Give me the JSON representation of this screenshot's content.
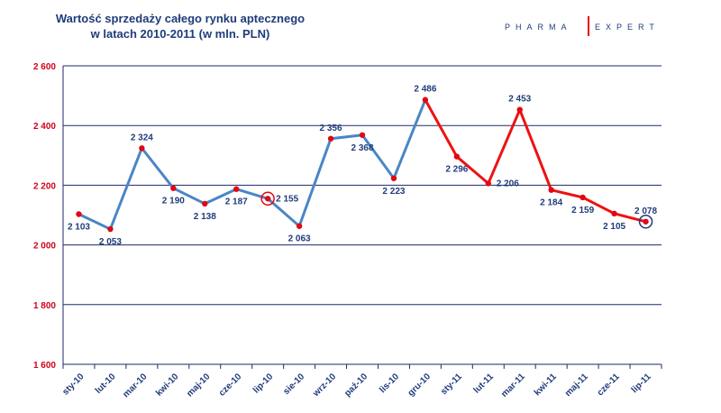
{
  "header": {
    "title_line1": "Wartość sprzedaży całego rynku aptecznego",
    "title_line2": "w latach 2010-2011 (w mln. PLN)",
    "brand_left": "PHARMA",
    "brand_right": "EXPERT"
  },
  "chart_data": {
    "type": "line",
    "title": "Wartość sprzedaży całego rynku aptecznego w latach 2010-2011 (w mln. PLN)",
    "xlabel": "",
    "ylabel": "",
    "ylim": [
      1600,
      2600
    ],
    "yticks": [
      1600,
      1800,
      2000,
      2200,
      2400,
      2600
    ],
    "ytick_labels": [
      "1 600",
      "1 800",
      "2 000",
      "2 200",
      "2 400",
      "2 600"
    ],
    "grid": true,
    "categories": [
      "sty-10",
      "lut-10",
      "mar-10",
      "kwi-10",
      "maj-10",
      "cze-10",
      "lip-10",
      "sie-10",
      "wrz-10",
      "paź-10",
      "lis-10",
      "gru-10",
      "sty-11",
      "lut-11",
      "mar-11",
      "kwi-11",
      "maj-11",
      "cze-11",
      "lip-11"
    ],
    "values": [
      2103,
      2053,
      2324,
      2190,
      2138,
      2187,
      2155,
      2063,
      2356,
      2368,
      2223,
      2486,
      2296,
      2206,
      2453,
      2184,
      2159,
      2105,
      2078
    ],
    "value_labels": [
      "2 103",
      "2 053",
      "2 324",
      "2 190",
      "2 138",
      "2 187",
      "2 155",
      "2 063",
      "2 356",
      "2 368",
      "2 223",
      "2 486",
      "2 296",
      "2 206",
      "2 453",
      "2 184",
      "2 159",
      "2 105",
      "2 078"
    ],
    "series": [
      {
        "name": "2010",
        "color": "#4a86c5",
        "start_index": 0,
        "end_index": 11
      },
      {
        "name": "2011",
        "color": "#ee1111",
        "start_index": 11,
        "end_index": 18
      }
    ],
    "marker_color": "#e30613",
    "highlighted": [
      {
        "category": "lip-10",
        "ring_color": "#e30613"
      },
      {
        "category": "lip-11",
        "ring_color": "#1f3c7a"
      }
    ],
    "label_positions": [
      "below",
      "below",
      "above",
      "below",
      "below",
      "below",
      "right",
      "below",
      "above",
      "below",
      "below",
      "above",
      "below",
      "right",
      "above",
      "below",
      "below",
      "below",
      "above"
    ]
  }
}
